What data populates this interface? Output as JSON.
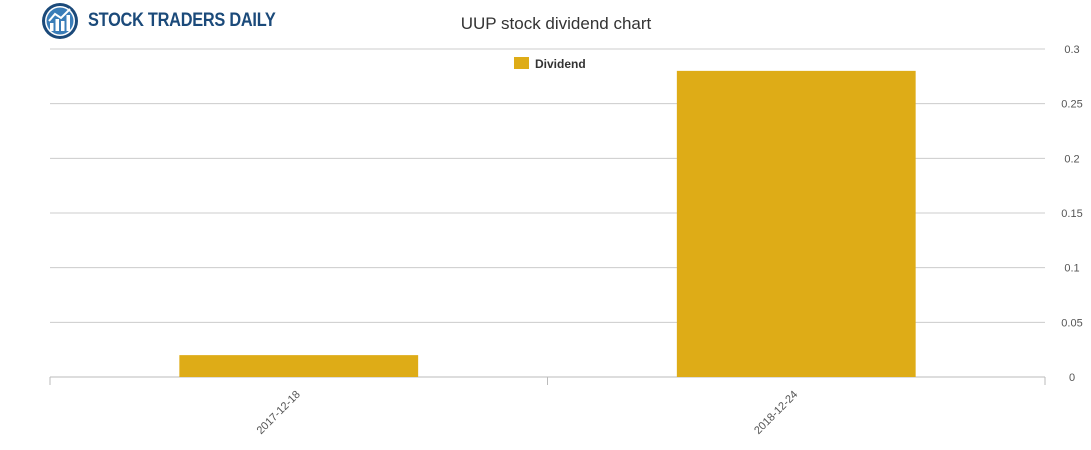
{
  "logo": {
    "text": "STOCK TRADERS DAILY",
    "icon": "chart-globe-icon"
  },
  "chart_data": {
    "type": "bar",
    "title": "UUP stock dividend chart",
    "categories": [
      "2017-12-18",
      "2018-12-24"
    ],
    "series": [
      {
        "name": "Dividend",
        "values": [
          0.02,
          0.28
        ],
        "color": "#deac17"
      }
    ],
    "ylim": [
      0,
      0.3
    ],
    "yticks": [
      "0",
      "0.05",
      "0.1",
      "0.15",
      "0.2",
      "0.25",
      "0.3"
    ],
    "y_axis_position": "right",
    "grid": true,
    "legend": "top-center",
    "xlabel": "",
    "ylabel": ""
  }
}
